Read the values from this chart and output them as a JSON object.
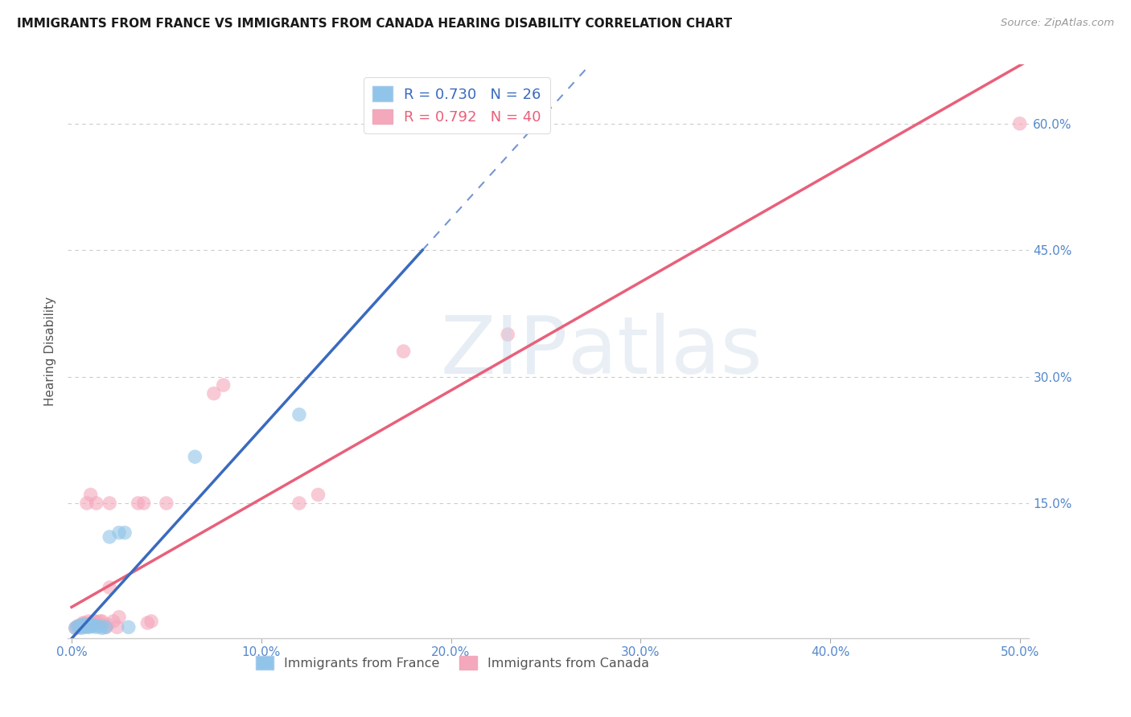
{
  "title": "IMMIGRANTS FROM FRANCE VS IMMIGRANTS FROM CANADA HEARING DISABILITY CORRELATION CHART",
  "source": "Source: ZipAtlas.com",
  "ylabel": "Hearing Disability",
  "xlim": [
    -0.002,
    0.505
  ],
  "ylim": [
    -0.01,
    0.67
  ],
  "xtick_values": [
    0.0,
    0.1,
    0.2,
    0.3,
    0.4,
    0.5
  ],
  "ytick_values": [
    0.15,
    0.3,
    0.45,
    0.6
  ],
  "france_color": "#90c4e8",
  "canada_color": "#f4a8bc",
  "france_line_color": "#3a6abf",
  "canada_line_color": "#e8607a",
  "france_scatter": [
    [
      0.002,
      0.002
    ],
    [
      0.003,
      0.004
    ],
    [
      0.004,
      0.003
    ],
    [
      0.005,
      0.005
    ],
    [
      0.005,
      0.002
    ],
    [
      0.006,
      0.004
    ],
    [
      0.006,
      0.006
    ],
    [
      0.007,
      0.003
    ],
    [
      0.007,
      0.005
    ],
    [
      0.008,
      0.004
    ],
    [
      0.008,
      0.006
    ],
    [
      0.009,
      0.003
    ],
    [
      0.01,
      0.004
    ],
    [
      0.01,
      0.006
    ],
    [
      0.011,
      0.004
    ],
    [
      0.012,
      0.005
    ],
    [
      0.013,
      0.003
    ],
    [
      0.015,
      0.004
    ],
    [
      0.016,
      0.002
    ],
    [
      0.018,
      0.003
    ],
    [
      0.02,
      0.11
    ],
    [
      0.025,
      0.115
    ],
    [
      0.028,
      0.115
    ],
    [
      0.03,
      0.003
    ],
    [
      0.065,
      0.205
    ],
    [
      0.12,
      0.255
    ]
  ],
  "canada_scatter": [
    [
      0.002,
      0.002
    ],
    [
      0.003,
      0.003
    ],
    [
      0.004,
      0.005
    ],
    [
      0.005,
      0.004
    ],
    [
      0.006,
      0.006
    ],
    [
      0.006,
      0.008
    ],
    [
      0.007,
      0.005
    ],
    [
      0.007,
      0.008
    ],
    [
      0.008,
      0.006
    ],
    [
      0.008,
      0.15
    ],
    [
      0.009,
      0.01
    ],
    [
      0.01,
      0.16
    ],
    [
      0.01,
      0.008
    ],
    [
      0.011,
      0.008
    ],
    [
      0.012,
      0.01
    ],
    [
      0.012,
      0.01
    ],
    [
      0.013,
      0.008
    ],
    [
      0.013,
      0.15
    ],
    [
      0.014,
      0.008
    ],
    [
      0.015,
      0.01
    ],
    [
      0.016,
      0.01
    ],
    [
      0.018,
      0.003
    ],
    [
      0.019,
      0.006
    ],
    [
      0.02,
      0.15
    ],
    [
      0.02,
      0.05
    ],
    [
      0.022,
      0.01
    ],
    [
      0.024,
      0.003
    ],
    [
      0.025,
      0.015
    ],
    [
      0.035,
      0.15
    ],
    [
      0.038,
      0.15
    ],
    [
      0.04,
      0.008
    ],
    [
      0.042,
      0.01
    ],
    [
      0.05,
      0.15
    ],
    [
      0.075,
      0.28
    ],
    [
      0.08,
      0.29
    ],
    [
      0.12,
      0.15
    ],
    [
      0.13,
      0.16
    ],
    [
      0.175,
      0.33
    ],
    [
      0.23,
      0.35
    ],
    [
      0.5,
      0.6
    ]
  ],
  "watermark_zip": "ZIP",
  "watermark_atlas": "atlas",
  "background_color": "#ffffff",
  "grid_color": "#cccccc",
  "france_legend_label": "R = 0.730   N = 26",
  "canada_legend_label": "R = 0.792   N = 40",
  "france_bottom_label": "Immigrants from France",
  "canada_bottom_label": "Immigrants from Canada"
}
